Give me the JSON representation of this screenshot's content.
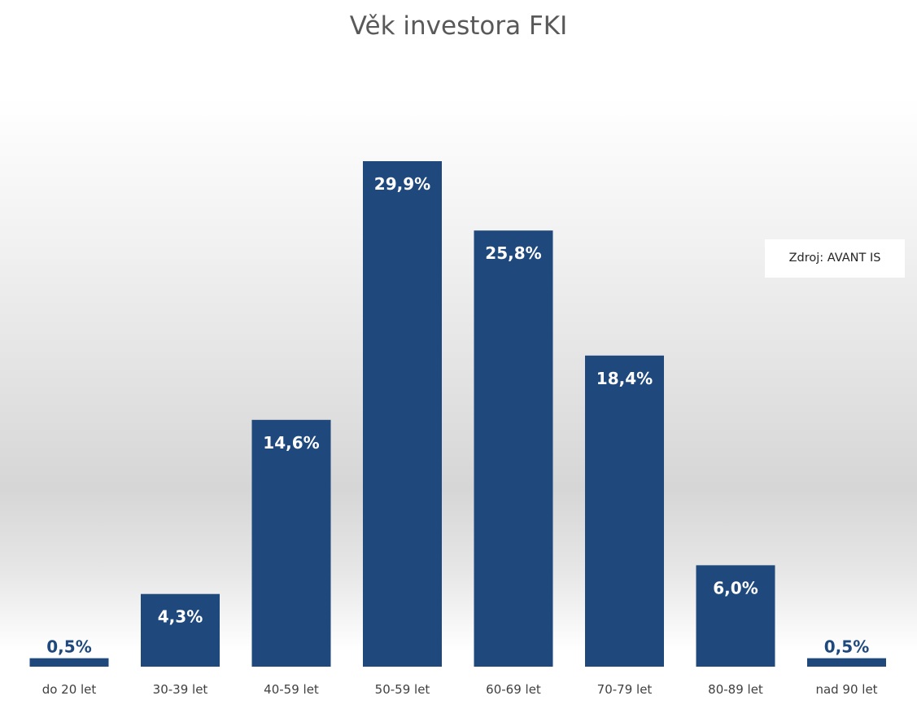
{
  "chart_data": {
    "type": "bar",
    "title": "Věk investora FKI",
    "categories": [
      "do 20 let",
      "30-39 let",
      "40-59 let",
      "50-59 let",
      "60-69 let",
      "70-79 let",
      "80-89 let",
      "nad 90 let"
    ],
    "values": [
      0.5,
      4.3,
      14.6,
      29.9,
      25.8,
      18.4,
      6.0,
      0.5
    ],
    "data_labels": [
      "0,5%",
      "4,3%",
      "14,6%",
      "29,9%",
      "25,8%",
      "18,4%",
      "6,0%",
      "0,5%"
    ],
    "xlabel": "",
    "ylabel": "",
    "ylim": [
      0,
      29.9
    ],
    "grid": false,
    "legend": "none",
    "bar_color": "#1F497D",
    "label_inside_color": "#ffffff",
    "label_outside_color": "#1F497D"
  },
  "annotation": {
    "source": "Zdroj: AVANT IS"
  }
}
